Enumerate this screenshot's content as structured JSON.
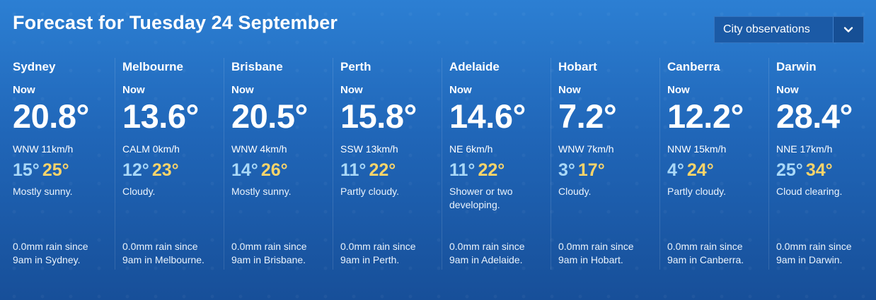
{
  "header": {
    "title": "Forecast for Tuesday 24 September",
    "dropdown": {
      "selected": "City observations",
      "icon": "chevron-down-icon"
    }
  },
  "cities": [
    {
      "name": "Sydney",
      "now_label": "Now",
      "temp": "20.8°",
      "wind": "WNW 11km/h",
      "min": "15°",
      "max": "25°",
      "forecast": "Mostly sunny.",
      "rain_line1": "0.0mm rain since",
      "rain_line2": "9am in Sydney."
    },
    {
      "name": "Melbourne",
      "now_label": "Now",
      "temp": "13.6°",
      "wind": "CALM 0km/h",
      "min": "12°",
      "max": "23°",
      "forecast": "Cloudy.",
      "rain_line1": "0.0mm rain since",
      "rain_line2": "9am in Melbourne."
    },
    {
      "name": "Brisbane",
      "now_label": "Now",
      "temp": "20.5°",
      "wind": "WNW 4km/h",
      "min": "14°",
      "max": "26°",
      "forecast": "Mostly sunny.",
      "rain_line1": "0.0mm rain since",
      "rain_line2": "9am in Brisbane."
    },
    {
      "name": "Perth",
      "now_label": "Now",
      "temp": "15.8°",
      "wind": "SSW 13km/h",
      "min": "11°",
      "max": "22°",
      "forecast": "Partly cloudy.",
      "rain_line1": "0.0mm rain since",
      "rain_line2": "9am in Perth."
    },
    {
      "name": "Adelaide",
      "now_label": "Now",
      "temp": "14.6°",
      "wind": "NE 6km/h",
      "min": "11°",
      "max": "22°",
      "forecast": "Shower or two developing.",
      "rain_line1": "0.0mm rain since",
      "rain_line2": "9am in Adelaide."
    },
    {
      "name": "Hobart",
      "now_label": "Now",
      "temp": "7.2°",
      "wind": "WNW 7km/h",
      "min": "3°",
      "max": "17°",
      "forecast": "Cloudy.",
      "rain_line1": "0.0mm rain since",
      "rain_line2": "9am in Hobart."
    },
    {
      "name": "Canberra",
      "now_label": "Now",
      "temp": "12.2°",
      "wind": "NNW 15km/h",
      "min": "4°",
      "max": "24°",
      "forecast": "Partly cloudy.",
      "rain_line1": "0.0mm rain since",
      "rain_line2": "9am in Canberra."
    },
    {
      "name": "Darwin",
      "now_label": "Now",
      "temp": "28.4°",
      "wind": "NNE 17km/h",
      "min": "25°",
      "max": "34°",
      "forecast": "Cloud clearing.",
      "rain_line1": "0.0mm rain since",
      "rain_line2": "9am in Darwin."
    }
  ],
  "colors": {
    "min_temp": "#a9d8f7",
    "max_temp": "#f9d46a",
    "background": "#2066b8"
  }
}
